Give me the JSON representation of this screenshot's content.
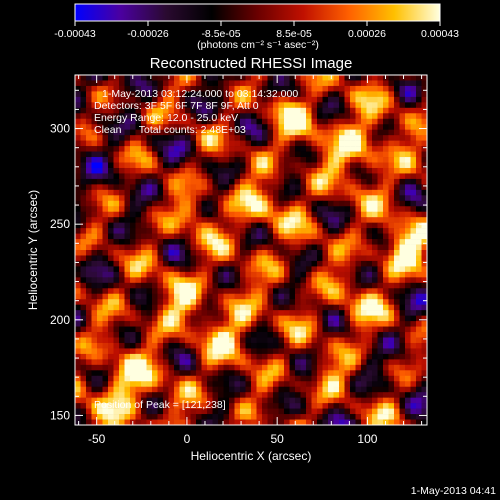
{
  "chart_data": {
    "type": "heatmap",
    "title": "Reconstructed RHESSI Image",
    "xlabel": "Heliocentric X (arcsec)",
    "ylabel": "Heliocentric Y (arcsec)",
    "xlim": [
      -62,
      133
    ],
    "ylim": [
      145,
      328
    ],
    "x_ticks": [
      -50,
      0,
      50,
      100
    ],
    "y_ticks": [
      150,
      200,
      250,
      300
    ],
    "colorbar": {
      "range": [
        -0.00043,
        0.00043
      ],
      "tick_labels": [
        "-0.00043",
        "-0.00026",
        "-8.5e-05",
        "8.5e-05",
        "0.00026",
        "0.00043"
      ],
      "unit_label": "(photons cm⁻² s⁻¹ asec⁻²)",
      "colors": [
        "#0000ff",
        "#4b00a0",
        "#2a0a30",
        "#000000",
        "#6a0000",
        "#c01000",
        "#ff6000",
        "#ffc000",
        "#ffffe0"
      ]
    },
    "info_lines": [
      "1-May-2013 03:12:24.000 to 03:14:32.000",
      "Detectors: 3F 5F 6F 7F 8F 9F, Att 0",
      "Energy Range: 12.0 - 25.0 keV",
      "Clean      Total counts: 2.48E+03"
    ],
    "peak_label": "Position of Peak = [121,238]",
    "peak": [
      121,
      238
    ],
    "grid": false
  },
  "timestamp": "1-May-2013 04:41"
}
